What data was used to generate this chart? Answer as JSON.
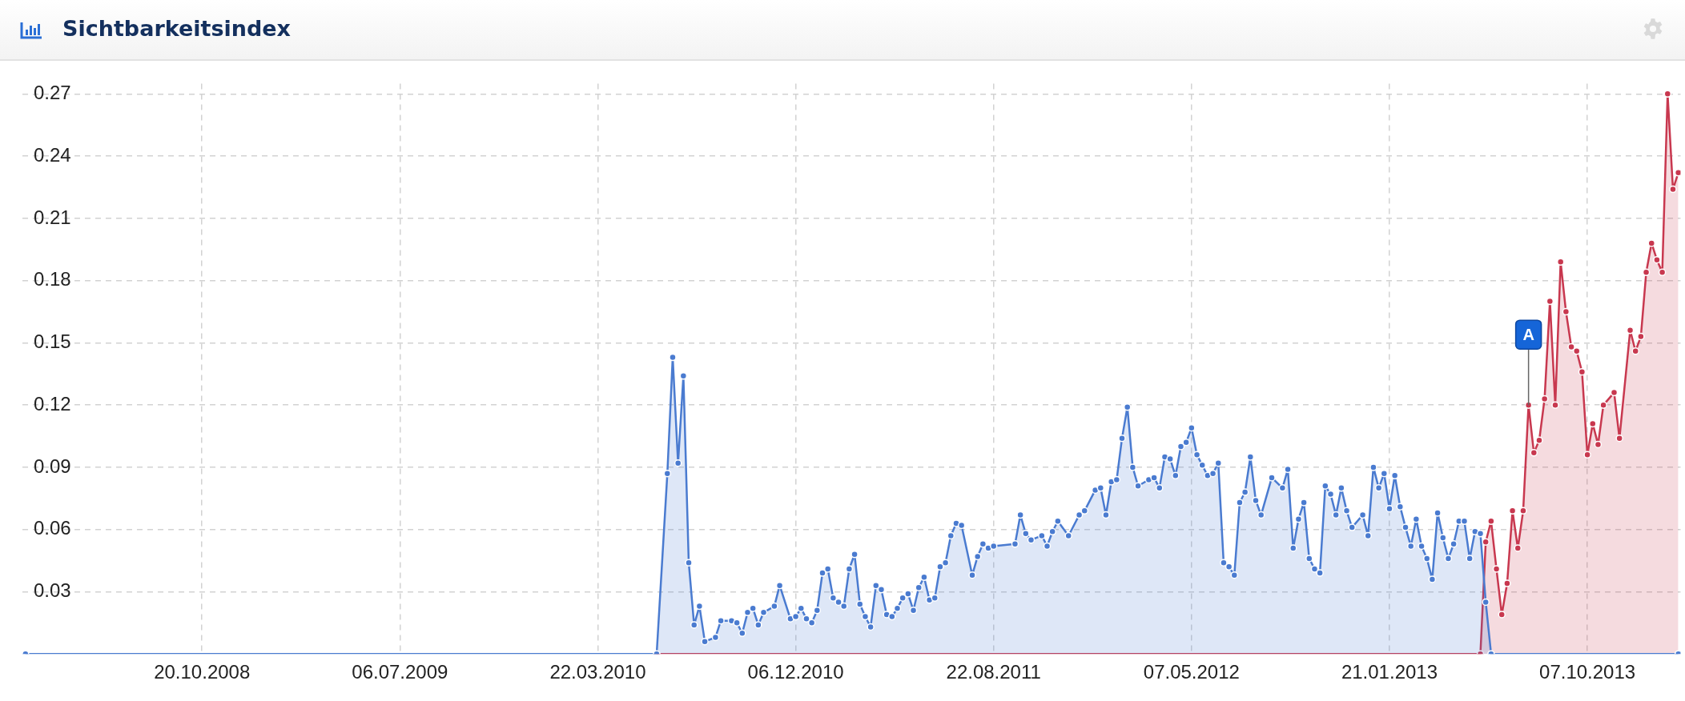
{
  "chart_data": {
    "type": "area",
    "title": "Sichtbarkeitsindex",
    "grid": true,
    "marker": "circle",
    "xlim": [
      "2008-02-28",
      "2014-02-06"
    ],
    "xticks": [
      {
        "value": "2008-10-20",
        "label": "20.10.2008"
      },
      {
        "value": "2009-07-06",
        "label": "06.07.2009"
      },
      {
        "value": "2010-03-22",
        "label": "22.03.2010"
      },
      {
        "value": "2010-12-06",
        "label": "06.12.2010"
      },
      {
        "value": "2011-08-22",
        "label": "22.08.2011"
      },
      {
        "value": "2012-05-07",
        "label": "07.05.2012"
      },
      {
        "value": "2013-01-21",
        "label": "21.01.2013"
      },
      {
        "value": "2013-10-07",
        "label": "07.10.2013"
      }
    ],
    "ylim": [
      0,
      0.275
    ],
    "yticks": [
      {
        "value": 0.03,
        "label": "0.03"
      },
      {
        "value": 0.06,
        "label": "0.06"
      },
      {
        "value": 0.09,
        "label": "0.09"
      },
      {
        "value": 0.12,
        "label": "0.12"
      },
      {
        "value": 0.15,
        "label": "0.15"
      },
      {
        "value": 0.18,
        "label": "0.18"
      },
      {
        "value": 0.21,
        "label": "0.21"
      },
      {
        "value": 0.24,
        "label": "0.24"
      },
      {
        "value": 0.27,
        "label": "0.27"
      }
    ],
    "annotations": [
      {
        "text": "A",
        "x": "2013-07-22",
        "y": 0.12
      }
    ],
    "series": [
      {
        "color": "#c8384f",
        "x": [
          "2010-06-07",
          "2013-05-20",
          "2013-05-27",
          "2013-06-03",
          "2013-06-10",
          "2013-06-17",
          "2013-06-24",
          "2013-07-01",
          "2013-07-08",
          "2013-07-15",
          "2013-07-22",
          "2013-07-29",
          "2013-08-05",
          "2013-08-12",
          "2013-08-19",
          "2013-08-26",
          "2013-09-02",
          "2013-09-09",
          "2013-09-16",
          "2013-09-23",
          "2013-09-30",
          "2013-10-07",
          "2013-10-14",
          "2013-10-21",
          "2013-10-28",
          "2013-11-11",
          "2013-11-18",
          "2013-12-02",
          "2013-12-09",
          "2013-12-16",
          "2013-12-23",
          "2013-12-30",
          "2014-01-06",
          "2014-01-13",
          "2014-01-20",
          "2014-01-27",
          "2014-02-03"
        ],
        "values": [
          0,
          0,
          0.054,
          0.064,
          0.041,
          0.019,
          0.034,
          0.069,
          0.051,
          0.069,
          0.12,
          0.097,
          0.103,
          0.123,
          0.17,
          0.12,
          0.189,
          0.165,
          0.148,
          0.146,
          0.136,
          0.096,
          0.111,
          0.101,
          0.12,
          0.126,
          0.104,
          0.156,
          0.146,
          0.153,
          0.184,
          0.198,
          0.19,
          0.184,
          0.27,
          0.224,
          0.232
        ]
      },
      {
        "color": "#4a7bd0",
        "x": [
          "2008-03-03",
          "2010-06-07",
          "2010-06-21",
          "2010-06-28",
          "2010-07-05",
          "2010-07-12",
          "2010-07-19",
          "2010-07-26",
          "2010-08-02",
          "2010-08-09",
          "2010-08-23",
          "2010-08-30",
          "2010-09-13",
          "2010-09-20",
          "2010-09-27",
          "2010-10-04",
          "2010-10-11",
          "2010-10-18",
          "2010-10-25",
          "2010-11-08",
          "2010-11-15",
          "2010-11-29",
          "2010-12-06",
          "2010-12-13",
          "2010-12-20",
          "2010-12-27",
          "2011-01-03",
          "2011-01-10",
          "2011-01-17",
          "2011-01-24",
          "2011-01-31",
          "2011-02-07",
          "2011-02-14",
          "2011-02-21",
          "2011-02-28",
          "2011-03-07",
          "2011-03-14",
          "2011-03-21",
          "2011-03-28",
          "2011-04-04",
          "2011-04-11",
          "2011-04-18",
          "2011-04-25",
          "2011-05-02",
          "2011-05-09",
          "2011-05-16",
          "2011-05-23",
          "2011-05-30",
          "2011-06-06",
          "2011-06-13",
          "2011-06-20",
          "2011-06-27",
          "2011-07-04",
          "2011-07-11",
          "2011-07-25",
          "2011-08-01",
          "2011-08-08",
          "2011-08-15",
          "2011-08-22",
          "2011-09-19",
          "2011-09-26",
          "2011-10-03",
          "2011-10-10",
          "2011-10-24",
          "2011-10-31",
          "2011-11-07",
          "2011-11-14",
          "2011-11-28",
          "2011-12-12",
          "2011-12-19",
          "2012-01-02",
          "2012-01-09",
          "2012-01-16",
          "2012-01-23",
          "2012-01-30",
          "2012-02-06",
          "2012-02-13",
          "2012-02-20",
          "2012-02-27",
          "2012-03-12",
          "2012-03-19",
          "2012-03-26",
          "2012-04-02",
          "2012-04-09",
          "2012-04-16",
          "2012-04-23",
          "2012-04-30",
          "2012-05-07",
          "2012-05-14",
          "2012-05-21",
          "2012-05-28",
          "2012-06-04",
          "2012-06-11",
          "2012-06-18",
          "2012-06-25",
          "2012-07-02",
          "2012-07-09",
          "2012-07-16",
          "2012-07-23",
          "2012-07-30",
          "2012-08-06",
          "2012-08-20",
          "2012-09-03",
          "2012-09-10",
          "2012-09-17",
          "2012-09-24",
          "2012-10-01",
          "2012-10-08",
          "2012-10-15",
          "2012-10-22",
          "2012-10-29",
          "2012-11-05",
          "2012-11-12",
          "2012-11-19",
          "2012-11-26",
          "2012-12-03",
          "2012-12-17",
          "2012-12-24",
          "2012-12-31",
          "2013-01-07",
          "2013-01-14",
          "2013-01-21",
          "2013-01-28",
          "2013-02-04",
          "2013-02-11",
          "2013-02-18",
          "2013-02-25",
          "2013-03-04",
          "2013-03-11",
          "2013-03-18",
          "2013-03-25",
          "2013-04-01",
          "2013-04-08",
          "2013-04-15",
          "2013-04-22",
          "2013-04-29",
          "2013-05-06",
          "2013-05-13",
          "2013-05-20",
          "2013-05-27",
          "2013-06-03",
          "2014-02-03"
        ],
        "values": [
          0,
          0,
          0.087,
          0.143,
          0.092,
          0.134,
          0.044,
          0.014,
          0.023,
          0.006,
          0.008,
          0.016,
          0.016,
          0.015,
          0.01,
          0.02,
          0.022,
          0.014,
          0.02,
          0.023,
          0.033,
          0.017,
          0.018,
          0.022,
          0.017,
          0.015,
          0.021,
          0.039,
          0.041,
          0.027,
          0.025,
          0.023,
          0.041,
          0.048,
          0.024,
          0.018,
          0.013,
          0.033,
          0.031,
          0.019,
          0.018,
          0.022,
          0.027,
          0.029,
          0.021,
          0.032,
          0.037,
          0.026,
          0.027,
          0.042,
          0.044,
          0.057,
          0.063,
          0.062,
          0.038,
          0.047,
          0.053,
          0.051,
          0.052,
          0.053,
          0.067,
          0.058,
          0.055,
          0.057,
          0.052,
          0.059,
          0.064,
          0.057,
          0.067,
          0.069,
          0.079,
          0.08,
          0.067,
          0.083,
          0.084,
          0.104,
          0.119,
          0.09,
          0.081,
          0.084,
          0.085,
          0.08,
          0.095,
          0.094,
          0.086,
          0.1,
          0.102,
          0.109,
          0.096,
          0.091,
          0.086,
          0.087,
          0.092,
          0.044,
          0.042,
          0.038,
          0.073,
          0.078,
          0.095,
          0.074,
          0.067,
          0.085,
          0.08,
          0.089,
          0.051,
          0.065,
          0.073,
          0.046,
          0.041,
          0.039,
          0.081,
          0.077,
          0.067,
          0.08,
          0.069,
          0.061,
          0.067,
          0.057,
          0.09,
          0.08,
          0.087,
          0.07,
          0.086,
          0.071,
          0.061,
          0.052,
          0.065,
          0.052,
          0.046,
          0.036,
          0.068,
          0.056,
          0.046,
          0.053,
          0.064,
          0.064,
          0.046,
          0.059,
          0.058,
          0.025,
          0,
          0
        ]
      }
    ]
  }
}
